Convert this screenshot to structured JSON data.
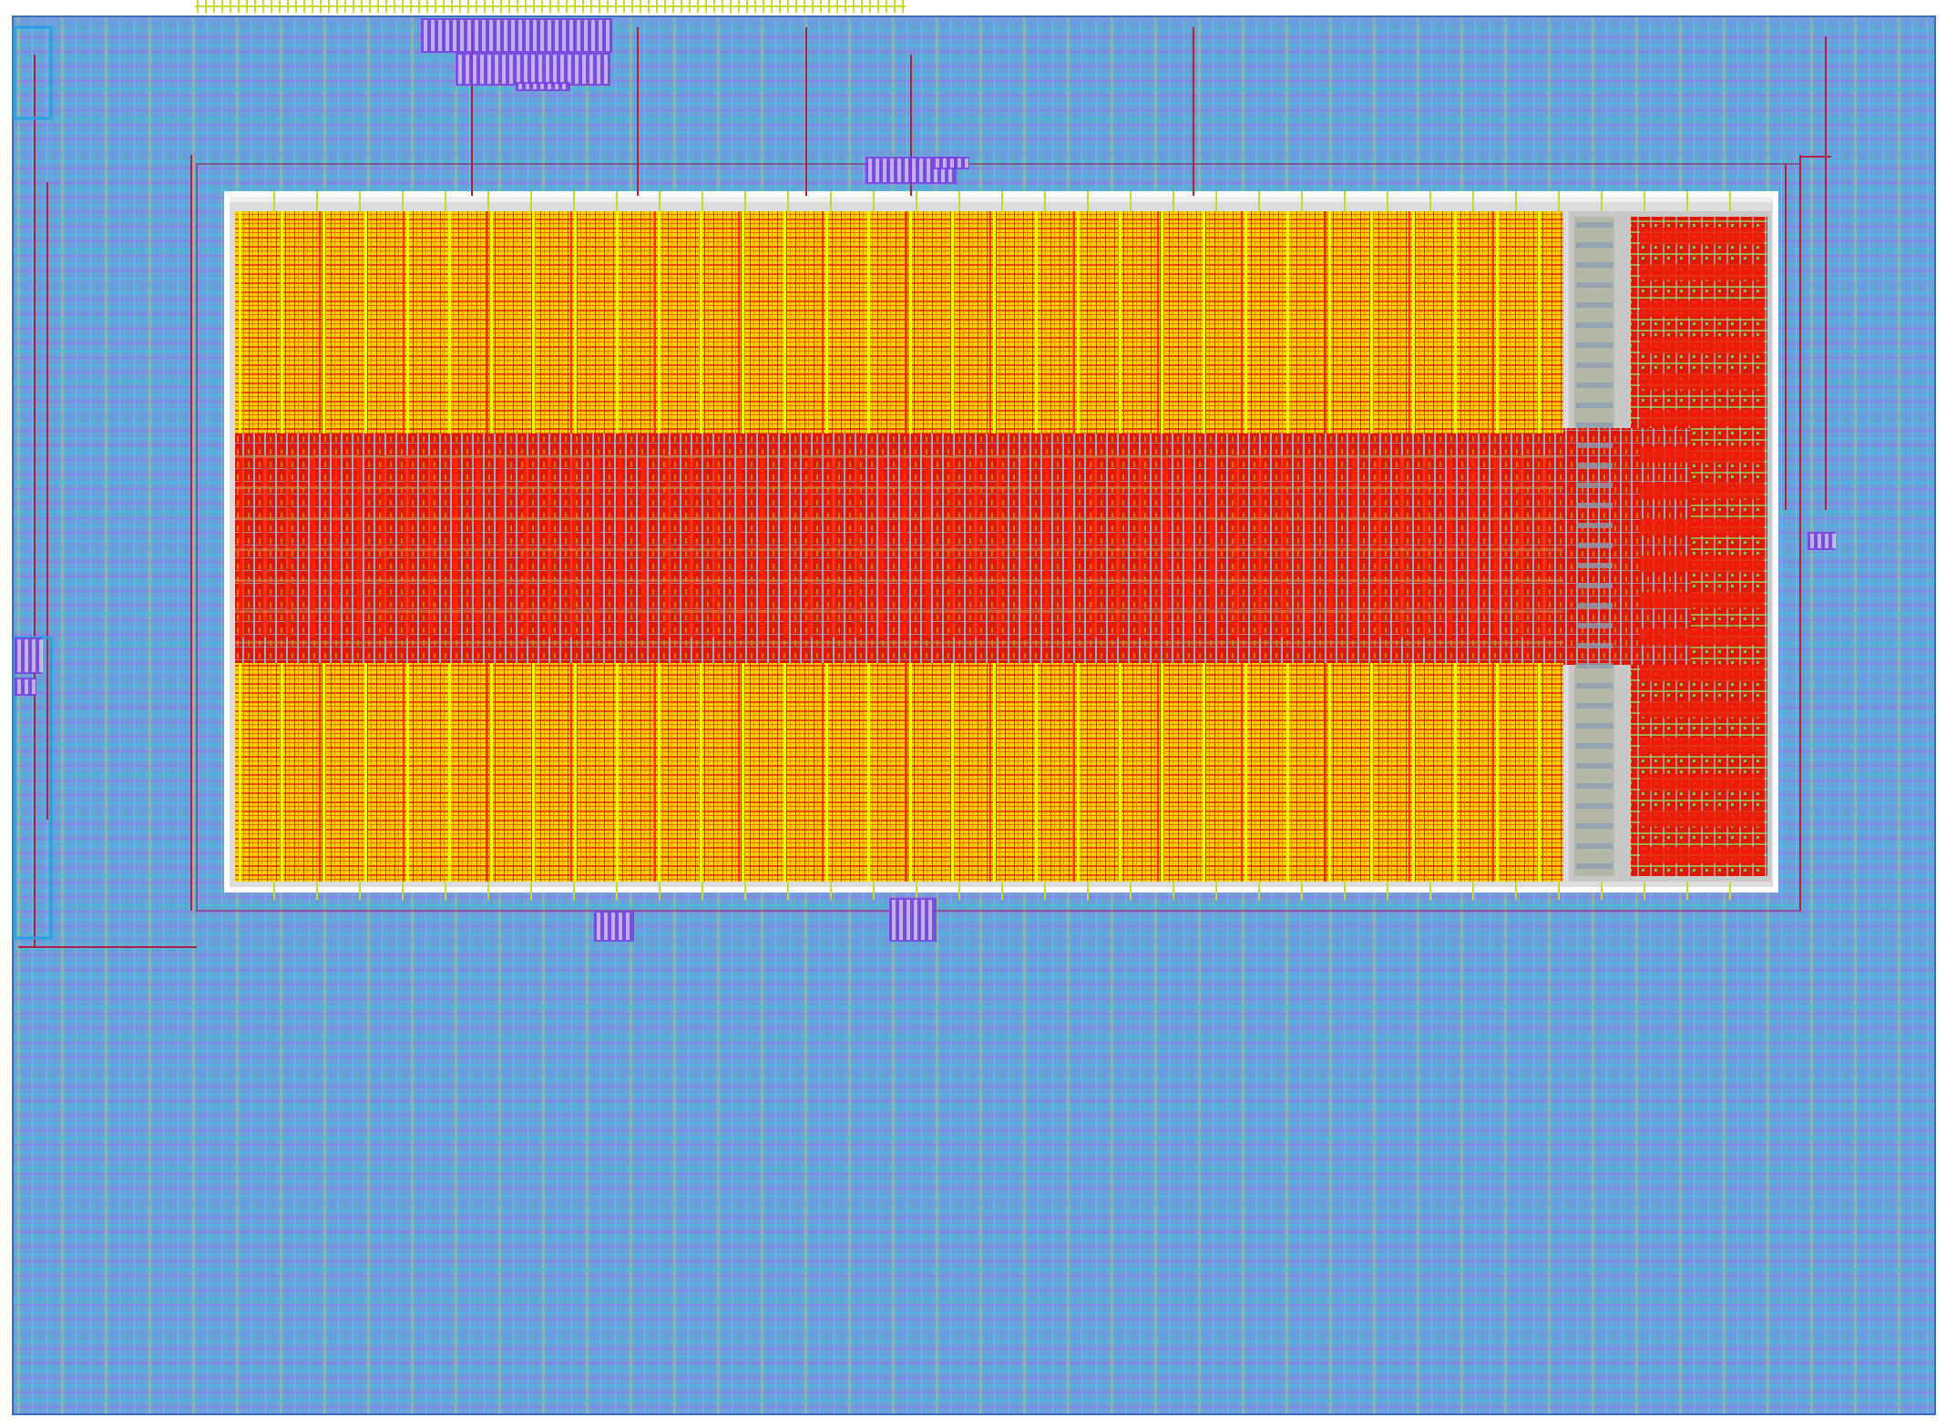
{
  "layout": {
    "colors": {
      "background": "#ffffff",
      "core_fill": "#6e9fd8",
      "core_mesh_a": "#4fb8d8",
      "core_mesh_b": "#8a7ee8",
      "core_mesh_c": "#c4b862",
      "macro_border": "#ffffff",
      "sram_array_fill": "#ffd000",
      "sram_array_mesh": "#e81c0c",
      "sram_decoder_fill": "#e01808",
      "sram_decoder_mesh": "#a0b4c8",
      "periphery_fill": "#e01808",
      "periphery_mesh": "#9cc050",
      "io_wire": "#c8d830",
      "route_wire": "#b02040",
      "cell_cluster": "#7a40e0"
    },
    "regions": [
      {
        "id": "standard-cell-core",
        "kind": "logic-region"
      },
      {
        "id": "sram-macro",
        "kind": "hard-macro"
      },
      {
        "id": "sram-array-top",
        "kind": "memory-array"
      },
      {
        "id": "sram-row-decoder",
        "kind": "decoder-band"
      },
      {
        "id": "sram-array-bottom",
        "kind": "memory-array"
      },
      {
        "id": "sram-control-periphery",
        "kind": "control-logic"
      },
      {
        "id": "top-io-pin-strip",
        "kind": "pin-strip"
      }
    ]
  }
}
